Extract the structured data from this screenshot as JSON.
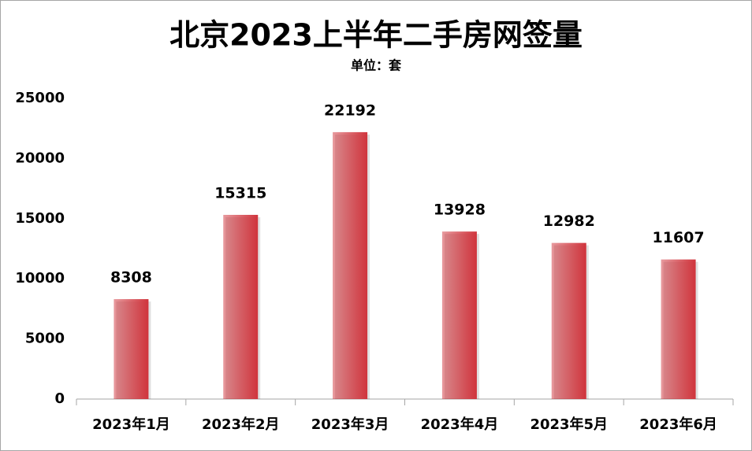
{
  "chart_data": {
    "type": "bar",
    "title": "北京2023上半年二手房网签量",
    "subtitle": "单位：套",
    "categories": [
      "2023年1月",
      "2023年2月",
      "2023年3月",
      "2023年4月",
      "2023年5月",
      "2023年6月"
    ],
    "values": [
      8308,
      15315,
      22192,
      13928,
      12982,
      11607
    ],
    "color": "#d0343c",
    "ylim": [
      0,
      25000
    ],
    "yticks": [
      0,
      5000,
      10000,
      15000,
      20000,
      25000
    ],
    "grid": false
  }
}
